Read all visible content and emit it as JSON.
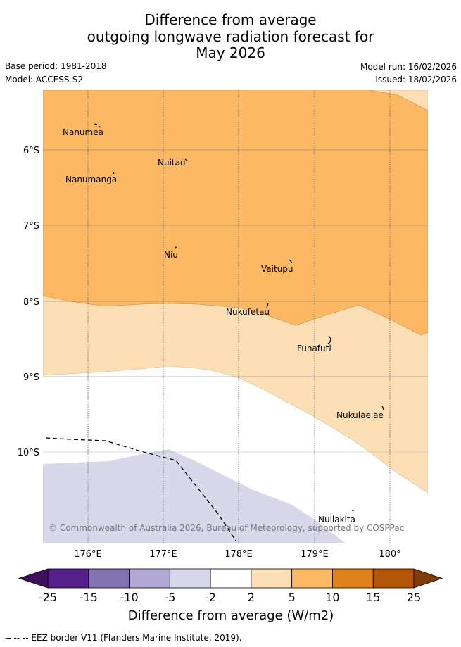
{
  "title": {
    "line1": "Difference from average",
    "line2": "outgoing longwave radiation forecast for",
    "line3": "May 2026"
  },
  "meta": {
    "base_period": "Base period: 1981-2018",
    "model": "Model: ACCESS-S2",
    "model_run": "Model run: 16/02/2026",
    "issued": "Issued: 18/02/2026"
  },
  "map": {
    "y_ticks": [
      "6°S",
      "7°S",
      "8°S",
      "9°S",
      "10°S"
    ],
    "x_ticks": [
      "176°E",
      "177°E",
      "178°E",
      "179°E",
      "180°"
    ],
    "places": [
      "Nanumea",
      "Nuitao",
      "Nanumanga",
      "Niu",
      "Vaitupu",
      "Nukufetau",
      "Funafuti",
      "Nukulaelae",
      "Nuilakita"
    ],
    "copyright": "© Commonwealth of Australia 2026, Bureau of Meteorology, supported by COSPPac"
  },
  "colorbar": {
    "labels": [
      "-25",
      "-15",
      "-10",
      "-5",
      "-2",
      "2",
      "5",
      "10",
      "15",
      "25"
    ],
    "colors": [
      "#3f0f5e",
      "#56208a",
      "#8373b0",
      "#b2a9d2",
      "#d8d8ea",
      "#ffffff",
      "#fddfb5",
      "#fcb862",
      "#e0821a",
      "#b35608",
      "#7f3b08"
    ],
    "label": "Difference from average (W/m2)"
  },
  "footer": {
    "legend_line": "--  --  -- EEZ border V11 (Flanders Marine Institute, 2019)."
  }
}
